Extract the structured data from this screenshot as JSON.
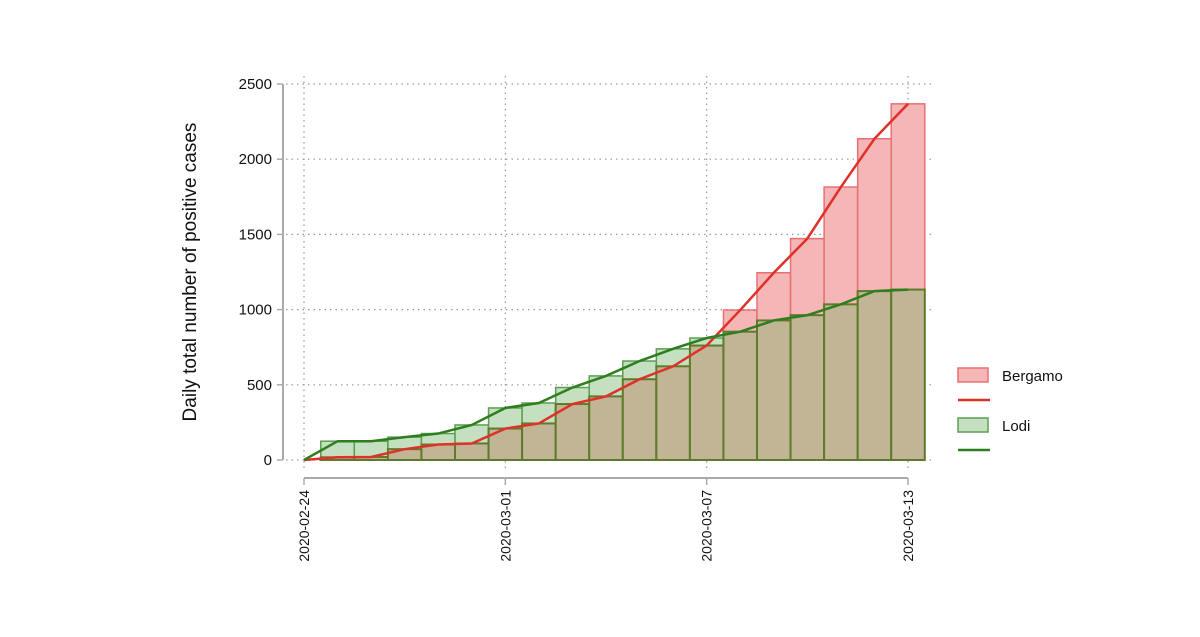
{
  "chart_data": {
    "type": "bar",
    "title": "",
    "xlabel": "",
    "ylabel": "Daily total number of positive cases",
    "x": [
      "2020-02-24",
      "2020-02-25",
      "2020-02-26",
      "2020-02-27",
      "2020-02-28",
      "2020-02-29",
      "2020-03-01",
      "2020-03-02",
      "2020-03-03",
      "2020-03-04",
      "2020-03-05",
      "2020-03-06",
      "2020-03-07",
      "2020-03-08",
      "2020-03-09",
      "2020-03-10",
      "2020-03-11",
      "2020-03-12",
      "2020-03-13"
    ],
    "x_ticks": [
      "2020-02-24",
      "2020-03-01",
      "2020-03-07",
      "2020-03-13"
    ],
    "y_ticks": [
      0,
      500,
      1000,
      1500,
      2000,
      2500
    ],
    "ylim": [
      0,
      2500
    ],
    "grid": true,
    "legend_position": "right",
    "series": [
      {
        "name": "Bergamo",
        "bar_color": "#f4b6b6",
        "edge_color": "#e87070",
        "line_color": "#e0302a",
        "values": [
          0,
          18,
          20,
          72,
          103,
          110,
          209,
          243,
          372,
          423,
          537,
          623,
          761,
          997,
          1245,
          1472,
          1815,
          2136,
          2368
        ]
      },
      {
        "name": "Lodi",
        "bar_color": "#c5e0c0",
        "edge_color": "#5aa050",
        "line_color": "#2e7d1e",
        "values": [
          0,
          125,
          125,
          152,
          176,
          233,
          346,
          379,
          482,
          559,
          658,
          739,
          811,
          853,
          928,
          963,
          1035,
          1123,
          1133
        ]
      }
    ],
    "overlap_color": "#c1b596"
  }
}
